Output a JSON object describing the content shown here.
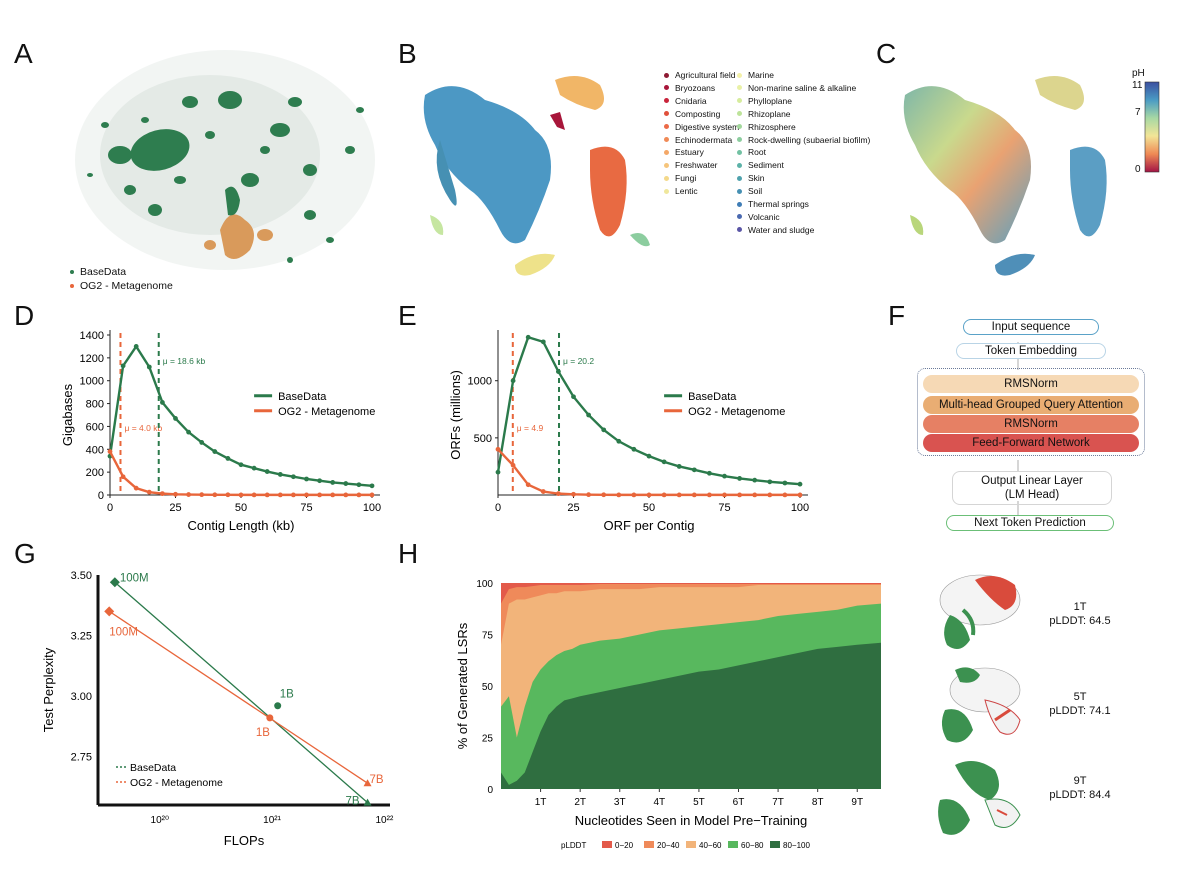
{
  "panels": {
    "a": "A",
    "b": "B",
    "c": "C",
    "d": "D",
    "e": "E",
    "f": "F",
    "g": "G",
    "h": "H"
  },
  "colors": {
    "basedata": "#2b7a4b",
    "og2": "#e8663b"
  },
  "panel_a": {
    "legend": [
      "BaseData",
      "OG2 - Metagenome"
    ]
  },
  "panel_b": {
    "legend_left": [
      {
        "label": "Agricultural field",
        "color": "#8e1b33"
      },
      {
        "label": "Bryozoans",
        "color": "#a8163a"
      },
      {
        "label": "Cnidaria",
        "color": "#c9243b"
      },
      {
        "label": "Composting",
        "color": "#e0503c"
      },
      {
        "label": "Digestive system",
        "color": "#ec6a47"
      },
      {
        "label": "Echinodermata",
        "color": "#f08a56"
      },
      {
        "label": "Estuary",
        "color": "#f4a868"
      },
      {
        "label": "Freshwater",
        "color": "#f6c57c"
      },
      {
        "label": "Fungi",
        "color": "#f4d98a"
      },
      {
        "label": "Lentic",
        "color": "#efe79c"
      }
    ],
    "legend_right": [
      {
        "label": "Marine",
        "color": "#f3f0a8"
      },
      {
        "label": "Non-marine saline & alkaline",
        "color": "#e9f1a6"
      },
      {
        "label": "Phylloplane",
        "color": "#d6ec9d"
      },
      {
        "label": "Rhizoplane",
        "color": "#bde39a"
      },
      {
        "label": "Rhizosphere",
        "color": "#a2d89c"
      },
      {
        "label": "Rock-dwelling (subaerial biofilm)",
        "color": "#8ccd9f"
      },
      {
        "label": "Root",
        "color": "#72c1a3"
      },
      {
        "label": "Sediment",
        "color": "#5cb2a8"
      },
      {
        "label": "Skin",
        "color": "#4fa2ad"
      },
      {
        "label": "Soil",
        "color": "#4690b3"
      },
      {
        "label": "Thermal springs",
        "color": "#3f7db6"
      },
      {
        "label": "Volcanic",
        "color": "#4a69b0"
      },
      {
        "label": "Water and sludge",
        "color": "#5a55a6"
      }
    ]
  },
  "panel_c": {
    "colorbar_title": "pH",
    "ticks": [
      "11",
      "7",
      "0"
    ]
  },
  "panel_f": {
    "input": "Input sequence",
    "embedding": "Token Embedding",
    "rmsnorm1": "RMSNorm",
    "attention": "Multi-head Grouped Query Attention",
    "rmsnorm2": "RMSNorm",
    "ffn": "Feed-Forward Network",
    "output_line1": "Output Linear Layer",
    "output_line2": "(LM Head)",
    "prediction": "Next Token Prediction"
  },
  "proteins": [
    {
      "tokens": "1T",
      "plddt": "pLDDT: 64.5"
    },
    {
      "tokens": "5T",
      "plddt": "pLDDT: 74.1"
    },
    {
      "tokens": "9T",
      "plddt": "pLDDT: 84.4"
    }
  ],
  "chart_data": [
    {
      "id": "D",
      "type": "line",
      "xlabel": "Contig Length (kb)",
      "ylabel": "Gigabases",
      "xlim": [
        0,
        100
      ],
      "ylim": [
        0,
        1400
      ],
      "xticks": [
        0,
        25,
        50,
        75,
        100
      ],
      "yticks": [
        0,
        200,
        400,
        600,
        800,
        1000,
        1200,
        1400
      ],
      "series": [
        {
          "name": "BaseData",
          "color": "#2b7a4b",
          "x": [
            0,
            5,
            10,
            15,
            20,
            25,
            30,
            35,
            40,
            45,
            50,
            55,
            60,
            65,
            70,
            75,
            80,
            85,
            90,
            95,
            100
          ],
          "y": [
            340,
            1130,
            1300,
            1120,
            810,
            670,
            550,
            460,
            380,
            320,
            265,
            235,
            205,
            180,
            160,
            140,
            125,
            110,
            100,
            90,
            80
          ]
        },
        {
          "name": "OG2 - Metagenome",
          "color": "#e8663b",
          "x": [
            0,
            5,
            10,
            15,
            20,
            25,
            30,
            35,
            40,
            45,
            50,
            55,
            60,
            65,
            70,
            75,
            80,
            85,
            90,
            95,
            100
          ],
          "y": [
            380,
            160,
            60,
            25,
            12,
            6,
            4,
            3,
            2,
            2,
            1,
            1,
            1,
            1,
            1,
            1,
            1,
            1,
            1,
            1,
            1
          ]
        }
      ],
      "means": [
        {
          "series": "OG2 - Metagenome",
          "x": 4.0,
          "label": "μ = 4.0 kb"
        },
        {
          "series": "BaseData",
          "x": 18.6,
          "label": "μ = 18.6 kb"
        }
      ],
      "legend": "right"
    },
    {
      "id": "E",
      "type": "line",
      "xlabel": "ORF per Contig",
      "ylabel": "ORFs (millions)",
      "xlim": [
        0,
        100
      ],
      "ylim": [
        0,
        1400
      ],
      "xticks": [
        0,
        25,
        50,
        75,
        100
      ],
      "yticks": [
        500,
        1000
      ],
      "series": [
        {
          "name": "BaseData",
          "color": "#2b7a4b",
          "x": [
            0,
            5,
            10,
            15,
            20,
            25,
            30,
            35,
            40,
            45,
            50,
            55,
            60,
            65,
            70,
            75,
            80,
            85,
            90,
            95,
            100
          ],
          "y": [
            200,
            1000,
            1380,
            1340,
            1080,
            860,
            700,
            570,
            470,
            400,
            340,
            290,
            250,
            220,
            190,
            165,
            145,
            130,
            115,
            105,
            95
          ]
        },
        {
          "name": "OG2 - Metagenome",
          "color": "#e8663b",
          "x": [
            0,
            5,
            10,
            15,
            20,
            25,
            30,
            35,
            40,
            45,
            50,
            55,
            60,
            65,
            70,
            75,
            80,
            85,
            90,
            95,
            100
          ],
          "y": [
            400,
            260,
            90,
            30,
            12,
            6,
            3,
            2,
            1,
            1,
            1,
            1,
            1,
            1,
            1,
            1,
            1,
            1,
            1,
            1,
            1
          ]
        }
      ],
      "means": [
        {
          "series": "OG2 - Metagenome",
          "x": 4.9,
          "label": "μ = 4.9"
        },
        {
          "series": "BaseData",
          "x": 20.2,
          "label": "μ = 20.2"
        }
      ],
      "legend": "right"
    },
    {
      "id": "G",
      "type": "scatter",
      "xlabel": "FLOPs",
      "ylabel": "Test Perplexity",
      "xscale": "log",
      "xlim_log10": [
        19.45,
        22.05
      ],
      "ylim": [
        2.55,
        3.5
      ],
      "yticks": [
        2.75,
        3.0,
        3.25,
        3.5
      ],
      "ytick_labels": [
        "2.75",
        "3.00",
        "3.25",
        "3.50"
      ],
      "xticks_log10": [
        20,
        21,
        22
      ],
      "xtick_labels": [
        "10²⁰",
        "10²¹",
        "10²²"
      ],
      "series": [
        {
          "name": "BaseData",
          "color": "#2b7a4b",
          "points": [
            {
              "log10x": 19.6,
              "y": 3.47,
              "label": "100M",
              "marker": "diamond"
            },
            {
              "log10x": 21.05,
              "y": 2.96,
              "label": "1B",
              "marker": "circle"
            },
            {
              "log10x": 21.85,
              "y": 2.56,
              "label": "7B",
              "marker": "triangle"
            }
          ]
        },
        {
          "name": "OG2 - Metagenome",
          "color": "#e8663b",
          "points": [
            {
              "log10x": 19.55,
              "y": 3.35,
              "label": "100M",
              "marker": "diamond"
            },
            {
              "log10x": 20.98,
              "y": 2.91,
              "label": "1B",
              "marker": "circle"
            },
            {
              "log10x": 21.85,
              "y": 2.64,
              "label": "7B",
              "marker": "triangle"
            }
          ]
        }
      ],
      "legend": "bottom-left"
    },
    {
      "id": "H",
      "type": "area",
      "xlabel": "Nucleotides Seen in Model Pre−Training",
      "ylabel": "% of Generated LSRs",
      "xlim": [
        0,
        9.6
      ],
      "ylim": [
        0,
        100
      ],
      "xticks": [
        1,
        2,
        3,
        4,
        5,
        6,
        7,
        8,
        9
      ],
      "xtick_labels": [
        "1T",
        "2T",
        "3T",
        "4T",
        "5T",
        "6T",
        "7T",
        "8T",
        "9T"
      ],
      "yticks": [
        0,
        25,
        50,
        75,
        100
      ],
      "legend_title": "pLDDT",
      "series": [
        {
          "name": "80−100",
          "color": "#2f6e40",
          "x": [
            0,
            0.2,
            0.4,
            0.6,
            0.8,
            1.0,
            1.2,
            1.4,
            1.6,
            1.8,
            2.0,
            2.5,
            3.0,
            3.5,
            4.0,
            4.5,
            5.0,
            5.5,
            6.0,
            6.5,
            7.0,
            7.5,
            8.0,
            8.5,
            9.0,
            9.6
          ],
          "y": [
            8,
            2,
            4,
            8,
            18,
            28,
            36,
            40,
            43,
            44,
            45,
            47,
            49,
            51,
            53,
            55,
            57,
            58,
            60,
            62,
            64,
            66,
            68,
            69,
            70,
            71
          ]
        },
        {
          "name": "60−80",
          "color": "#58b85e",
          "x": [
            0,
            0.2,
            0.4,
            0.6,
            0.8,
            1.0,
            1.2,
            1.4,
            1.6,
            1.8,
            2.0,
            2.5,
            3.0,
            3.5,
            4.0,
            4.5,
            5.0,
            5.5,
            6.0,
            6.5,
            7.0,
            7.5,
            8.0,
            8.5,
            9.0,
            9.6
          ],
          "y": [
            40,
            45,
            25,
            40,
            52,
            58,
            62,
            65,
            67,
            68,
            70,
            72,
            73,
            75,
            77,
            78,
            79,
            80,
            81,
            82,
            84,
            85,
            86,
            87,
            89,
            90
          ]
        },
        {
          "name": "40−60",
          "color": "#f2b47a",
          "x": [
            0,
            0.2,
            0.4,
            0.6,
            0.8,
            1.0,
            1.2,
            1.4,
            1.6,
            1.8,
            2.0,
            2.5,
            3.0,
            3.5,
            4.0,
            4.5,
            5.0,
            5.5,
            6.0,
            6.5,
            7.0,
            7.5,
            8.0,
            8.5,
            9.0,
            9.6
          ],
          "y": [
            70,
            90,
            92,
            92,
            93,
            94,
            95,
            95,
            96,
            96,
            96,
            97,
            97,
            97,
            98,
            98,
            98,
            98,
            98,
            99,
            99,
            99,
            99,
            99,
            99,
            99
          ]
        },
        {
          "name": "20−40",
          "color": "#ef8a5a",
          "x": [
            0,
            0.2,
            0.4,
            0.6,
            0.8,
            1.0,
            1.2,
            1.4,
            1.6,
            1.8,
            2.0,
            2.5,
            3.0,
            3.5,
            4.0,
            4.5,
            5.0,
            5.5,
            6.0,
            6.5,
            7.0,
            7.5,
            8.0,
            8.5,
            9.0,
            9.6
          ],
          "y": [
            90,
            97,
            98,
            98,
            98.5,
            99,
            99,
            99,
            99,
            99,
            99,
            99.5,
            99.5,
            99.5,
            99.5,
            99.5,
            99.5,
            99.5,
            99.5,
            99.5,
            99.5,
            99.5,
            99.5,
            99.5,
            99.5,
            99.5
          ]
        },
        {
          "name": "0−20",
          "color": "#e35a4a",
          "x": [
            0,
            9.6
          ],
          "y": [
            100,
            100
          ]
        }
      ],
      "legend": "bottom"
    }
  ]
}
